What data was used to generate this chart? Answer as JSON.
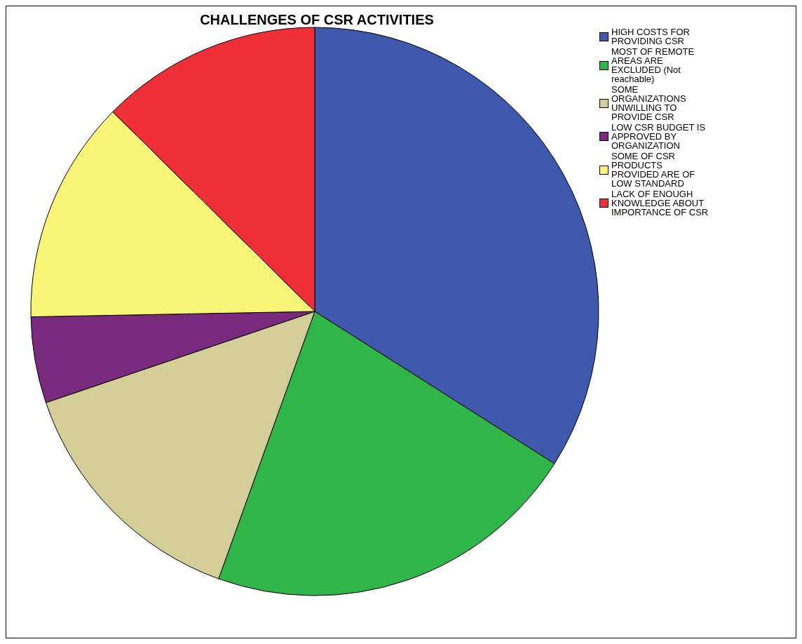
{
  "chart_data": {
    "type": "pie",
    "title": "CHALLENGES OF CSR ACTIVITIES",
    "categories": [
      "HIGH COSTS FOR PROVIDING CSR",
      "MOST OF REMOTE AREAS ARE EXCLUDED (Not reachable)",
      "SOME ORGANIZATIONS UNWILLING TO PROVIDE CSR",
      "LOW CSR BUDGET IS APPROVED BY ORGANIZATION",
      "SOME OF CSR PRODUCTS PROVIDED ARE OF LOW STANDARD",
      "LACK OF ENOUGH KNOWLEDGE ABOUT IMPORTANCE OF CSR"
    ],
    "values": [
      34.0,
      21.5,
      14.3,
      4.9,
      12.7,
      12.6
    ],
    "colors": [
      "#3e58ac",
      "#2fb548",
      "#d3ce97",
      "#7a2a7c",
      "#f8f477",
      "#ef3038"
    ],
    "legend": "top right"
  }
}
